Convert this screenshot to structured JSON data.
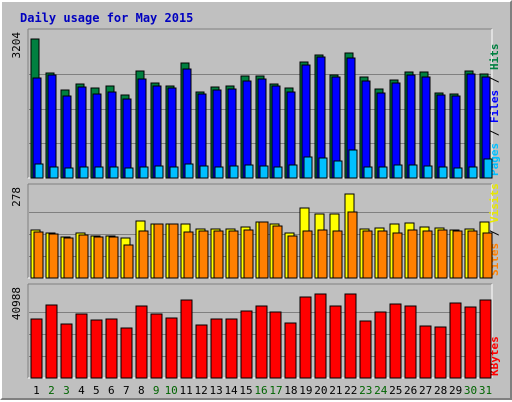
{
  "chart_data": {
    "type": "bar",
    "title": "Daily usage for May 2015",
    "title_color": "#0000c0",
    "categories": [
      "1",
      "2",
      "3",
      "4",
      "5",
      "6",
      "7",
      "8",
      "9",
      "10",
      "11",
      "12",
      "13",
      "14",
      "15",
      "16",
      "17",
      "18",
      "19",
      "20",
      "21",
      "22",
      "23",
      "24",
      "25",
      "26",
      "27",
      "28",
      "29",
      "30",
      "31"
    ],
    "weekend_days": [
      "2",
      "3",
      "9",
      "10",
      "16",
      "17",
      "23",
      "24",
      "30",
      "31"
    ],
    "day_label_colors": {
      "weekday": "#000000",
      "weekend": "#006400"
    },
    "grid": true,
    "panels": [
      {
        "name": "hits-files-pages",
        "ymax_label": "3204",
        "ylim": [
          0,
          3204
        ],
        "side_label_parts": [
          "Pages",
          " / ",
          "Files",
          " / ",
          "Hits"
        ],
        "side_label_colors": [
          "#00c0ff",
          "#000000",
          "#0000ff",
          "#000000",
          "#008040"
        ],
        "series": [
          {
            "name": "Hits",
            "color": "#008040",
            "values": [
              3204,
              2410,
              2020,
              2160,
              2080,
              2110,
              1910,
              2470,
              2190,
              2130,
              2650,
              1990,
              2100,
              2120,
              2340,
              2360,
              2160,
              2080,
              2680,
              2840,
              2380,
              2870,
              2320,
              2040,
              2260,
              2450,
              2450,
              1950,
              1930,
              2470,
              2390
            ]
          },
          {
            "name": "Files",
            "color": "#0000ff",
            "values": [
              2300,
              2380,
              1900,
              2090,
              1940,
              1990,
              1810,
              2280,
              2130,
              2070,
              2510,
              1930,
              2020,
              2060,
              2230,
              2280,
              2130,
              1990,
              2600,
              2780,
              2320,
              2770,
              2230,
              1960,
              2200,
              2380,
              2330,
              1920,
              1890,
              2390,
              2330
            ]
          },
          {
            "name": "Pages",
            "color": "#00c0ff",
            "values": [
              330,
              260,
              240,
              250,
              250,
              250,
              230,
              260,
              280,
              260,
              330,
              280,
              260,
              280,
              290,
              280,
              260,
              310,
              490,
              470,
              400,
              640,
              260,
              260,
              290,
              290,
              280,
              260,
              240,
              250,
              430
            ]
          }
        ]
      },
      {
        "name": "visits-sites",
        "ymax_label": "278",
        "ylim": [
          0,
          278
        ],
        "side_label_parts": [
          "Sites",
          " / ",
          "Visits"
        ],
        "side_label_colors": [
          "#ff8000",
          "#000000",
          "#e8e800"
        ],
        "series": [
          {
            "name": "Visits",
            "color": "#ffff00",
            "values": [
              160,
              150,
              135,
              148,
              138,
              138,
              131,
              190,
              178,
              178,
              180,
              163,
              161,
              163,
              168,
              185,
              178,
              148,
              232,
              212,
              212,
              278,
              161,
              165,
              178,
              183,
              168,
              165,
              158,
              163,
              185
            ]
          },
          {
            "name": "Sites",
            "color": "#ff8000",
            "values": [
              152,
              145,
              133,
              143,
              135,
              135,
              108,
              155,
              178,
              178,
              152,
              155,
              155,
              155,
              160,
              185,
              172,
              140,
              155,
              158,
              155,
              218,
              155,
              155,
              150,
              160,
              155,
              158,
              155,
              155,
              150
            ]
          }
        ]
      },
      {
        "name": "kbytes",
        "ymax_label": "40988",
        "ylim": [
          0,
          40988
        ],
        "side_label_parts": [
          "KBytes"
        ],
        "side_label_colors": [
          "#ff0000"
        ],
        "series": [
          {
            "name": "KBytes",
            "color": "#ff0000",
            "values": [
              29000,
              35500,
              26300,
              31100,
              28300,
              29000,
              24400,
              35000,
              31300,
              29500,
              38100,
              25800,
              28600,
              28600,
              32600,
              35100,
              32100,
              26600,
              39400,
              40988,
              35100,
              40988,
              27800,
              32400,
              36000,
              35100,
              25600,
              24900,
              36600,
              34800,
              38200
            ]
          }
        ]
      }
    ]
  }
}
